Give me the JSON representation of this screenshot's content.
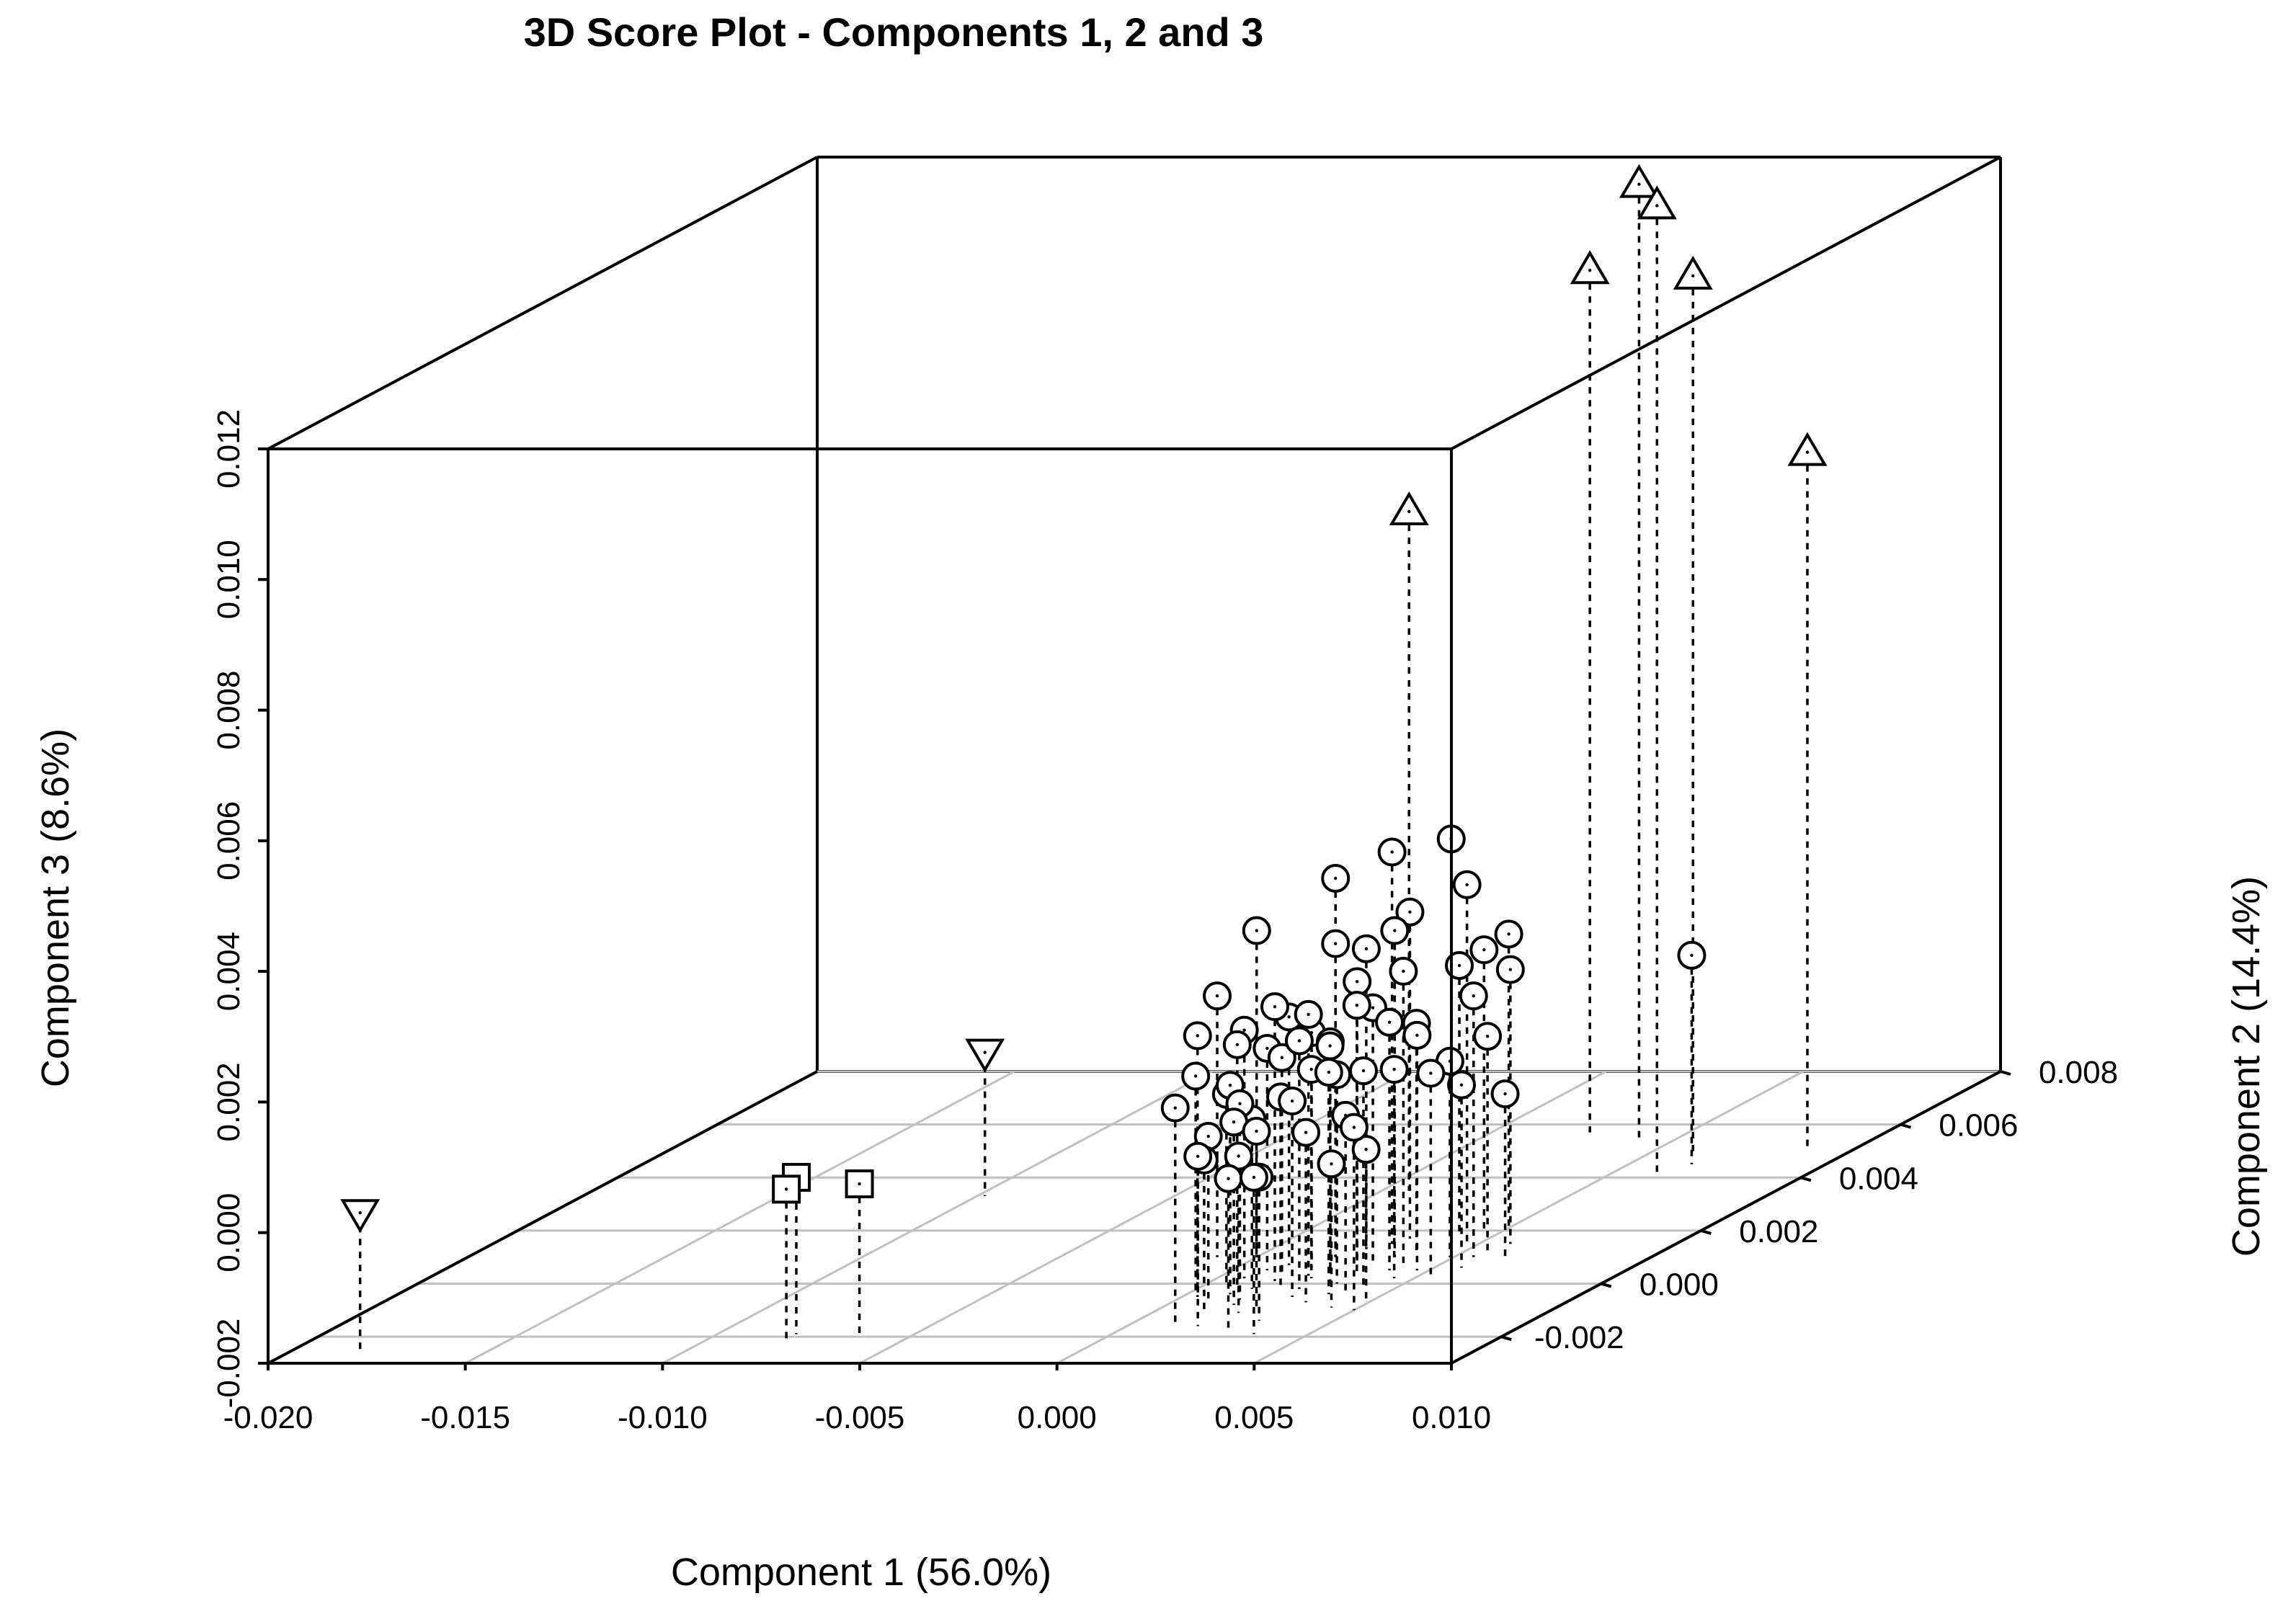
{
  "chart_data": {
    "type": "scatter",
    "projection": "3d",
    "title": "3D Score Plot - Components 1, 2 and 3",
    "xlabel": "Component 1 (56.0%)",
    "ylabel": "Component 2 (14.4%)",
    "zlabel": "Component 3 (8.6%)",
    "xlim": [
      -0.02,
      0.01
    ],
    "ylim": [
      -0.003,
      0.008
    ],
    "zlim": [
      -0.002,
      0.012
    ],
    "xticks": [
      "-0.020",
      "-0.015",
      "-0.010",
      "-0.005",
      "0.000",
      "0.005",
      "0.010"
    ],
    "yticks": [
      "-0.002",
      "0.000",
      "0.002",
      "0.004",
      "0.006",
      "0.008"
    ],
    "zticks": [
      "-0.002",
      "0.000",
      "0.002",
      "0.004",
      "0.006",
      "0.008",
      "0.010",
      "0.012"
    ],
    "grid": true,
    "legend": "none",
    "series": [
      {
        "marker": "down-triangle",
        "points": [
          [
            -0.0183,
            -0.0025,
            0.0001
          ],
          [
            -0.0098,
            0.0033,
            0.0002
          ]
        ]
      },
      {
        "marker": "square",
        "points": [
          [
            -0.008,
            -0.0019,
            0.0004
          ],
          [
            -0.008,
            -0.0021,
            0.0003
          ],
          [
            -0.0064,
            -0.0019,
            0.0003
          ]
        ]
      },
      {
        "marker": "up-triangle",
        "points": [
          [
            0.0007,
            0.0035,
            0.0084
          ],
          [
            0.0025,
            0.0057,
            0.0112
          ],
          [
            0.004,
            0.0055,
            0.0126
          ],
          [
            0.0061,
            0.0042,
            0.0128
          ],
          [
            0.006,
            0.005,
            0.0114
          ],
          [
            0.0089,
            0.005,
            0.0087
          ]
        ]
      },
      {
        "marker": "circle",
        "points": [
          [
            0.0066,
            0.0045,
            0.0012
          ],
          [
            -0.001,
            0.001,
            0.002
          ],
          [
            0.0,
            0.001,
            0.003
          ],
          [
            0.0004,
            -0.0005,
            0.002
          ],
          [
            0.0009,
            -0.0001,
            0.0017
          ],
          [
            0.0011,
            -0.0015,
            0.0013
          ],
          [
            0.0014,
            0.0004,
            0.0013
          ],
          [
            0.0016,
            -0.0006,
            0.001
          ],
          [
            0.002,
            0.001,
            0.0028
          ],
          [
            0.0025,
            0.0005,
            0.0015
          ],
          [
            0.0028,
            0.0015,
            0.004
          ],
          [
            0.002,
            0.001,
            0.0038
          ],
          [
            0.0033,
            0.0,
            0.0012
          ],
          [
            0.0035,
            0.001,
            0.003
          ],
          [
            0.0043,
            0.0015,
            0.0042
          ],
          [
            0.0047,
            0.0015,
            0.0035
          ],
          [
            0.004,
            0.0005,
            0.0018
          ],
          [
            0.0045,
            0.002,
            0.0023
          ],
          [
            0.0049,
            0.001,
            0.001
          ],
          [
            0.0055,
            0.001,
            0.002
          ],
          [
            0.0058,
            0.0015,
            0.0022
          ],
          [
            0.0063,
            0.001,
            0.0005
          ],
          [
            0.005,
            -0.001,
            0.0008
          ],
          [
            0.0028,
            -0.0005,
            0.001
          ],
          [
            0.0017,
            -0.0008,
            0.0008
          ],
          [
            0.0012,
            -0.001,
            0.0003
          ],
          [
            0.0008,
            -0.0006,
            0.0005
          ],
          [
            0.0022,
            -0.0011,
            0.0004
          ],
          [
            0.0031,
            -0.0014,
            0.0002
          ],
          [
            0.0036,
            -0.0004,
            0.0014
          ],
          [
            0.0039,
            -0.0003,
            0.0007
          ],
          [
            0.0024,
            0.0002,
            0.0012
          ],
          [
            0.002,
            -0.0001,
            0.0009
          ],
          [
            0.003,
            0.0001,
            0.0016
          ],
          [
            0.0034,
            -0.0007,
            0.0006
          ],
          [
            0.0016,
            0.0001,
            0.0022
          ],
          [
            0.0045,
            0.0002,
            0.0012
          ],
          [
            0.0053,
            0.0003,
            0.0011
          ],
          [
            0.0057,
            0.0006,
            0.0008
          ],
          [
            0.0011,
            -0.0004,
            0.0012
          ],
          [
            0.0001,
            -0.0003,
            0.0013
          ],
          [
            0.0007,
            0.0002,
            0.0018
          ],
          [
            0.0026,
            -0.0002,
            0.0018
          ],
          [
            0.0041,
            -0.0001,
            0.0013
          ],
          [
            0.0048,
            -0.0006,
            0.0003
          ],
          [
            0.0027,
            -0.0017,
            0.0003
          ],
          [
            0.0036,
            -0.0019,
            0.0004
          ],
          [
            0.0018,
            -0.0016,
            0.0006
          ],
          [
            0.0033,
            0.0004,
            0.0021
          ],
          [
            0.0041,
            0.0007,
            0.0025
          ],
          [
            0.0024,
            0.0013,
            0.0026
          ],
          [
            0.003,
            0.0017,
            0.003
          ],
          [
            0.0022,
            0.0003,
            0.002
          ],
          [
            0.005,
            0.0021,
            0.0025
          ],
          [
            0.0056,
            0.0012,
            0.0013
          ],
          [
            0.0012,
            0.0007,
            0.0018
          ],
          [
            0.0038,
            0.0012,
            0.0015
          ],
          [
            0.0014,
            -0.0002,
            0.0006
          ],
          [
            0.0043,
            -0.0009,
            0.0002
          ],
          [
            0.0028,
            0.0008,
            0.0023
          ],
          [
            0.0009,
            0.0005,
            0.0014
          ],
          [
            0.0032,
            0.0008,
            0.0019
          ],
          [
            0.0019,
            0.0006,
            0.0016
          ],
          [
            0.0047,
            0.0005,
            0.0016
          ],
          [
            0.0005,
            0.0,
            0.0009
          ],
          [
            0.0024,
            -0.0009,
            0.0007
          ],
          [
            0.004,
            0.0019,
            0.0021
          ]
        ]
      }
    ]
  }
}
